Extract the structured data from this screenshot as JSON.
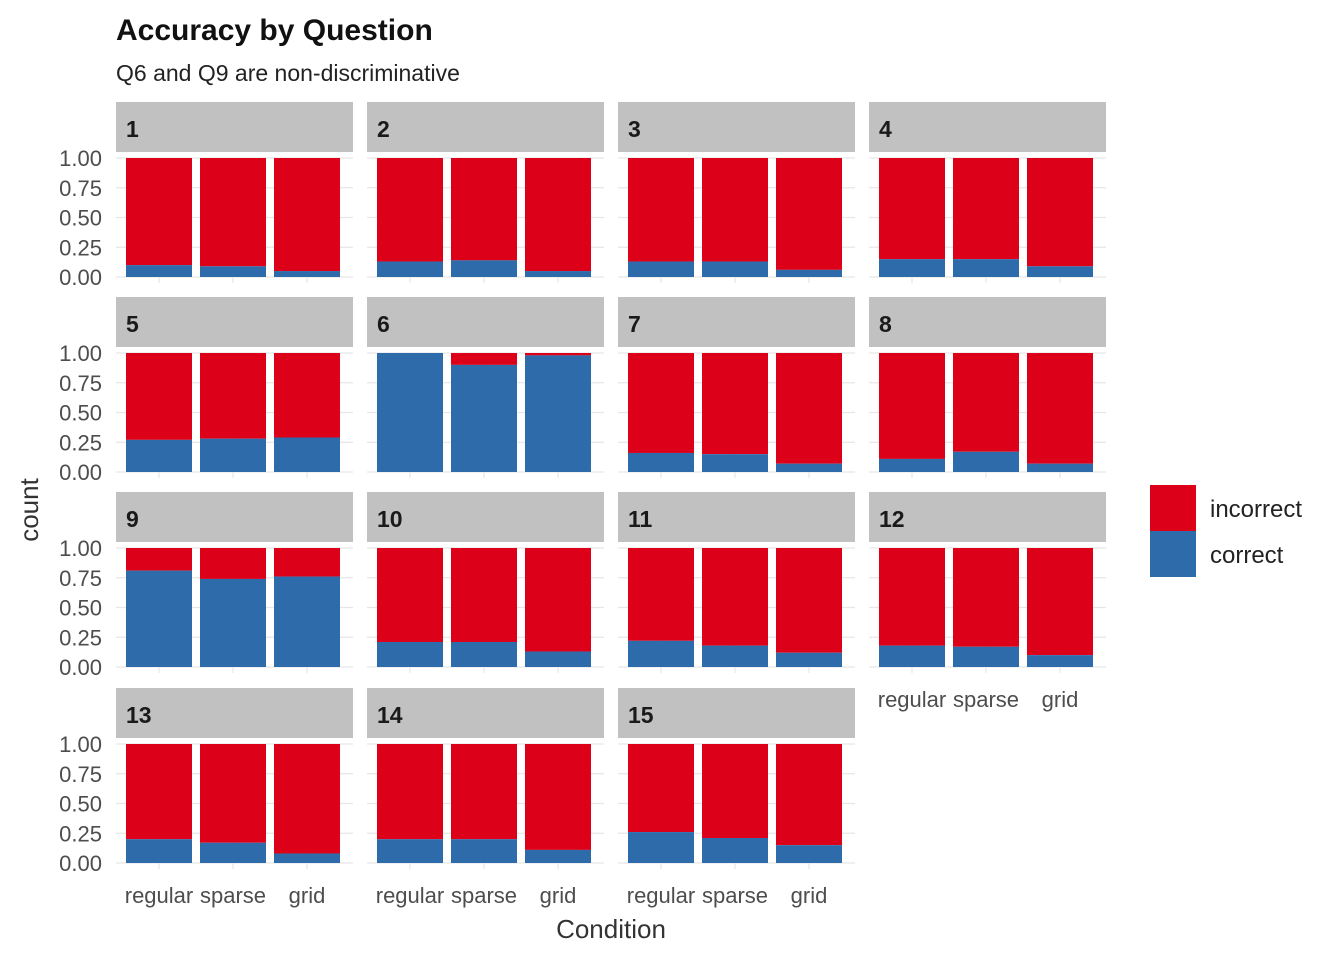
{
  "chart_data": {
    "type": "bar",
    "stacked": true,
    "title": "Accuracy by Question",
    "subtitle": "Q6 and Q9 are non-discriminative",
    "xlabel": "Condition",
    "ylabel": "count",
    "ylim": [
      0,
      1
    ],
    "yticks": [
      "0.00",
      "0.25",
      "0.50",
      "0.75",
      "1.00"
    ],
    "categories": [
      "regular",
      "sparse",
      "grid"
    ],
    "facets": [
      "1",
      "2",
      "3",
      "4",
      "5",
      "6",
      "7",
      "8",
      "9",
      "10",
      "11",
      "12",
      "13",
      "14",
      "15"
    ],
    "legend": {
      "position": "right",
      "entries": [
        "incorrect",
        "correct"
      ]
    },
    "grid": true,
    "colors": {
      "incorrect": "#DC0019",
      "correct": "#2E6BAB",
      "strip": "#C1C1C1",
      "grid": "#E6E6E6"
    },
    "series": [
      {
        "name": "correct",
        "values": [
          [
            0.1,
            0.09,
            0.05
          ],
          [
            0.13,
            0.14,
            0.05
          ],
          [
            0.13,
            0.13,
            0.06
          ],
          [
            0.15,
            0.15,
            0.09
          ],
          [
            0.27,
            0.28,
            0.29
          ],
          [
            1.0,
            0.9,
            0.98
          ],
          [
            0.16,
            0.15,
            0.07
          ],
          [
            0.11,
            0.17,
            0.07
          ],
          [
            0.81,
            0.74,
            0.76
          ],
          [
            0.21,
            0.21,
            0.13
          ],
          [
            0.22,
            0.18,
            0.12
          ],
          [
            0.18,
            0.17,
            0.1
          ],
          [
            0.2,
            0.17,
            0.08
          ],
          [
            0.2,
            0.2,
            0.11
          ],
          [
            0.26,
            0.21,
            0.15
          ]
        ]
      },
      {
        "name": "incorrect",
        "values": [
          [
            0.9,
            0.91,
            0.95
          ],
          [
            0.87,
            0.86,
            0.95
          ],
          [
            0.87,
            0.87,
            0.94
          ],
          [
            0.85,
            0.85,
            0.91
          ],
          [
            0.73,
            0.72,
            0.71
          ],
          [
            0.0,
            0.1,
            0.02
          ],
          [
            0.84,
            0.85,
            0.93
          ],
          [
            0.89,
            0.83,
            0.93
          ],
          [
            0.19,
            0.26,
            0.24
          ],
          [
            0.79,
            0.79,
            0.87
          ],
          [
            0.78,
            0.82,
            0.88
          ],
          [
            0.82,
            0.83,
            0.9
          ],
          [
            0.8,
            0.83,
            0.92
          ],
          [
            0.8,
            0.8,
            0.89
          ],
          [
            0.74,
            0.79,
            0.85
          ]
        ]
      }
    ]
  }
}
